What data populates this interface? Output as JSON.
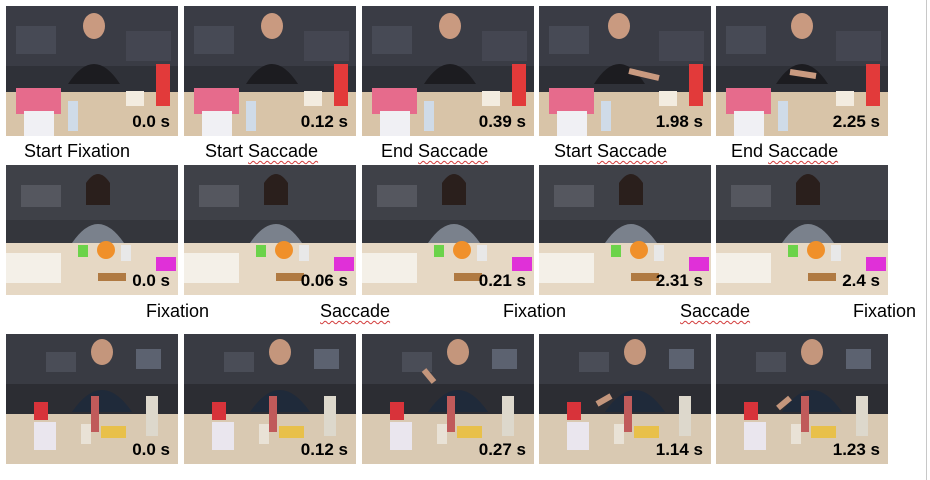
{
  "rows": [
    {
      "frames": [
        {
          "time": "0.0 s"
        },
        {
          "time": "0.12 s"
        },
        {
          "time": "0.39 s"
        },
        {
          "time": "1.98 s"
        },
        {
          "time": "2.25 s"
        }
      ],
      "labels": [
        {
          "first": "Start Fixation",
          "second": ""
        },
        {
          "first": "Start ",
          "second": "Saccade"
        },
        {
          "first": "End ",
          "second": "Saccade"
        },
        {
          "first": "Start ",
          "second": "Saccade"
        },
        {
          "first": "End ",
          "second": "Saccade"
        }
      ]
    },
    {
      "frames": [
        {
          "time": "0.0 s"
        },
        {
          "time": "0.06 s"
        },
        {
          "time": "0.21 s"
        },
        {
          "time": "2.31 s"
        },
        {
          "time": "2.4 s"
        }
      ],
      "labels": [
        "Fixation",
        "Saccade",
        "Fixation",
        "Saccade",
        "Fixation"
      ]
    },
    {
      "frames": [
        {
          "time": "0.0 s"
        },
        {
          "time": "0.12 s"
        },
        {
          "time": "0.27 s"
        },
        {
          "time": "1.14 s"
        },
        {
          "time": "1.23 s"
        }
      ]
    }
  ],
  "colors": {
    "room_dark": "#2b2c33",
    "table": "#d9c7ad",
    "squiggle": "#d23c3c"
  }
}
